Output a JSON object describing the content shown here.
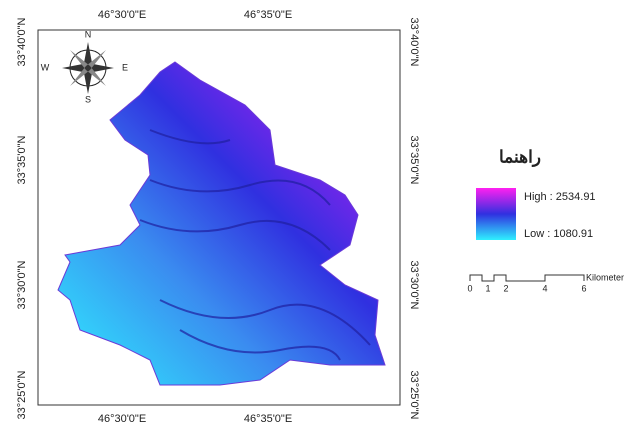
{
  "map": {
    "top_labels": [
      "46°30'0\"E",
      "46°35'0\"E"
    ],
    "bottom_labels": [
      "46°30'0\"E",
      "46°35'0\"E"
    ],
    "left_labels": [
      "33°40'0\"N",
      "33°35'0\"N",
      "33°30'0\"N",
      "33°25'0\"N"
    ],
    "right_labels": [
      "33°40'0\"N",
      "33°35'0\"N",
      "33°30'0\"N",
      "33°25'0\"N"
    ],
    "compass": {
      "n": "N",
      "s": "S",
      "e": "E",
      "w": "W"
    }
  },
  "legend": {
    "title": "راهنما",
    "high": "High : 2534.91",
    "low": "Low : 1080.91"
  },
  "scale_bar": {
    "ticks": [
      "0",
      "1",
      "2",
      "4",
      "6"
    ],
    "unit": "Kilometer"
  }
}
